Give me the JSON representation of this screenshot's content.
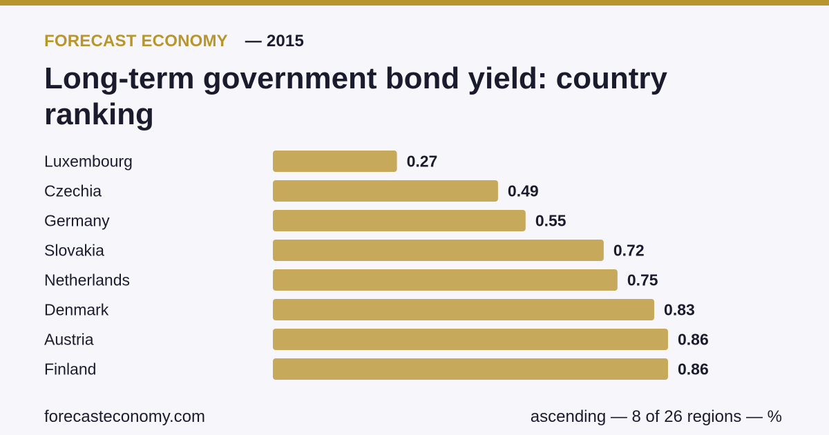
{
  "header": {
    "brand": "FORECAST ECONOMY",
    "year_label": "— 2015",
    "title": "Long-term government bond yield: country ranking"
  },
  "colors": {
    "accent": "#b8962e",
    "bar": "#c7a95b",
    "text": "#1b1b2e",
    "background": "#f7f7fb"
  },
  "chart_data": {
    "type": "bar",
    "orientation": "horizontal",
    "categories": [
      "Luxembourg",
      "Czechia",
      "Germany",
      "Slovakia",
      "Netherlands",
      "Denmark",
      "Austria",
      "Finland"
    ],
    "values": [
      0.27,
      0.49,
      0.55,
      0.72,
      0.75,
      0.83,
      0.86,
      0.86
    ],
    "value_labels": [
      "0.27",
      "0.49",
      "0.55",
      "0.72",
      "0.75",
      "0.83",
      "0.86",
      "0.86"
    ],
    "xlim": [
      0,
      0.86
    ],
    "grid": false
  },
  "footer": {
    "source": "forecasteconomy.com",
    "note": "ascending — 8 of 26 regions — %"
  }
}
